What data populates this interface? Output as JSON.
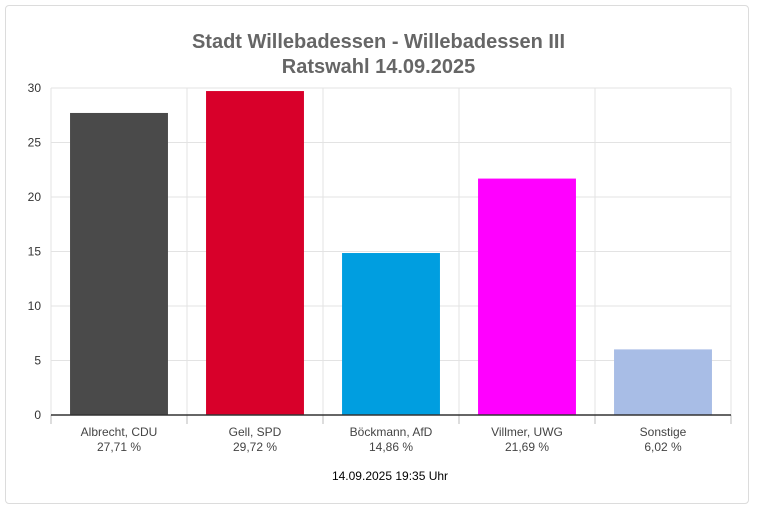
{
  "chart_data": {
    "type": "bar",
    "title": "Stadt Willebadessen - Willebadessen III",
    "subtitle": "Ratswahl 14.09.2025",
    "categories": [
      "Albrecht, CDU",
      "Gell, SPD",
      "Böckmann, AfD",
      "Villmer, UWG",
      "Sonstige"
    ],
    "value_labels": [
      "27,71 %",
      "29,72 %",
      "14,86 %",
      "21,69 %",
      "6,02 %"
    ],
    "values": [
      27.71,
      29.72,
      14.86,
      21.69,
      6.02
    ],
    "colors": [
      "#4a4a4a",
      "#d8002a",
      "#009ee0",
      "#ff00ff",
      "#a8bde6"
    ],
    "ylim": [
      0,
      30
    ],
    "yticks": [
      "0",
      "5",
      "10",
      "15",
      "20",
      "25",
      "30"
    ],
    "grid": true,
    "xlabel": "",
    "ylabel": ""
  },
  "footer": {
    "timestamp": "14.09.2025 19:35 Uhr"
  }
}
